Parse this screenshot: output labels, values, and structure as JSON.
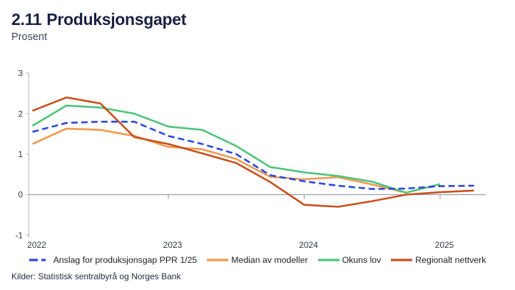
{
  "header": {
    "number": "2.11",
    "title": "Produksjonsgapet",
    "subtitle": "Prosent"
  },
  "source": "Kilder: Statistisk sentralbyrå og Norges Bank",
  "colors": {
    "title_navy": "#1a2142",
    "zero_line": "#9aa0a6",
    "axis_line": "#bcc0c4",
    "tick_text": "#333840"
  },
  "chart_data": {
    "type": "line",
    "title": "2.11 Produksjonsgapet",
    "ylabel": "Prosent",
    "ylim": [
      -1,
      3
    ],
    "yticks": [
      3,
      2,
      1,
      0,
      -1
    ],
    "xticks": {
      "values": [
        2022,
        2023,
        2024,
        2025
      ],
      "labels": [
        "2022",
        "2023",
        "2024",
        "2025"
      ]
    },
    "grid": "zero-line-only",
    "legend_position": "bottom",
    "x_unit": "quarter",
    "x": [
      2022.0,
      2022.25,
      2022.5,
      2022.75,
      2023.0,
      2023.25,
      2023.5,
      2023.75,
      2024.0,
      2024.25,
      2024.5,
      2024.75,
      2025.0,
      2025.25
    ],
    "series": [
      {
        "name": "Anslag for produksjonsgap PPR 1/25",
        "color": "#2a48e0",
        "dash": true,
        "values": [
          1.55,
          1.77,
          1.8,
          1.8,
          1.45,
          1.25,
          1.0,
          0.48,
          0.33,
          0.22,
          0.14,
          0.15,
          0.21,
          0.22
        ]
      },
      {
        "name": "Median av modeller",
        "color": "#ef9950",
        "dash": false,
        "values": [
          1.25,
          1.63,
          1.6,
          1.45,
          1.18,
          1.12,
          0.88,
          0.44,
          0.38,
          0.43,
          0.25,
          0.05
        ]
      },
      {
        "name": "Okuns lov",
        "color": "#4ec47a",
        "dash": false,
        "values": [
          1.7,
          2.2,
          2.15,
          2.0,
          1.68,
          1.6,
          1.2,
          0.68,
          0.55,
          0.46,
          0.32,
          0.05,
          0.26
        ]
      },
      {
        "name": "Regionalt nettverk",
        "color": "#c94f1d",
        "dash": false,
        "values": [
          2.07,
          2.4,
          2.25,
          1.42,
          1.25,
          1.02,
          0.78,
          0.31,
          -0.25,
          -0.3,
          -0.16,
          0.0,
          0.06,
          0.1
        ]
      }
    ]
  }
}
